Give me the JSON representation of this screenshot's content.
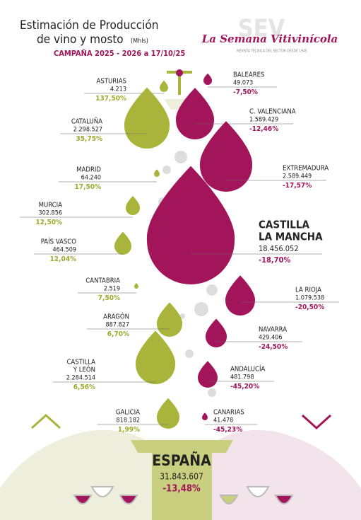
{
  "header": {
    "title_lines": [
      "Estimación de Producción",
      "de vino y mosto"
    ],
    "unit": "(Mhls)",
    "campaign": "CAMPAÑA 2025 - 2026 a 17/10/25"
  },
  "brand": {
    "logo": "SEV",
    "name": "La Semana Vitivinícola",
    "tagline": "REVISTA TÉCNICA DEL SECTOR DESDE 1945"
  },
  "regions": [
    {
      "name": [
        "ASTURIAS"
      ],
      "production": "4.213",
      "change": "137,50%"
    },
    {
      "name": [
        "CATALUÑA"
      ],
      "production": "2.298.527",
      "change": "35,75%"
    },
    {
      "name": [
        "MADRID"
      ],
      "production": "64.240",
      "change": "17,50%"
    },
    {
      "name": [
        "MURCIA"
      ],
      "production": "302.856",
      "change": "12,50%"
    },
    {
      "name": [
        "PAÍS VASCO"
      ],
      "production": "464.509",
      "change": "12,04%"
    },
    {
      "name": [
        "CANTABRIA"
      ],
      "production": "2.519",
      "change": "7,50%"
    },
    {
      "name": [
        "ARAGÓN"
      ],
      "production": "887.827",
      "change": "6,70%"
    },
    {
      "name": [
        "CASTILLA",
        "Y LEÓN"
      ],
      "production": "2.284.514",
      "change": "6,56%"
    },
    {
      "name": [
        "GALICIA"
      ],
      "production": "818.182",
      "change": "1,99%"
    },
    {
      "name": [
        "BALEARES"
      ],
      "production": "49.073",
      "change": "-7,50%"
    },
    {
      "name": [
        "C. VALENCIANA"
      ],
      "production": "1.589.429",
      "change": "-12,46%"
    },
    {
      "name": [
        "EXTREMADURA"
      ],
      "production": "2.589.449",
      "change": "-17,57%"
    },
    {
      "name": [
        "CASTILLA",
        "LA MANCHA"
      ],
      "production": "18.456.052",
      "change": "-18,70%"
    },
    {
      "name": [
        "LA RIOJA"
      ],
      "production": "1.079.538",
      "change": "-20,50%"
    },
    {
      "name": [
        "NAVARRA"
      ],
      "production": "429.406",
      "change": "-24,50%"
    },
    {
      "name": [
        "ANDALUCÍA"
      ],
      "production": "481.798",
      "change": "-45,20%"
    },
    {
      "name": [
        "CANARIAS"
      ],
      "production": "41.478",
      "change": "-45,23%"
    }
  ],
  "total": {
    "name": "ESPAÑA",
    "production": "31.843.607",
    "change": "-13,48%"
  }
}
